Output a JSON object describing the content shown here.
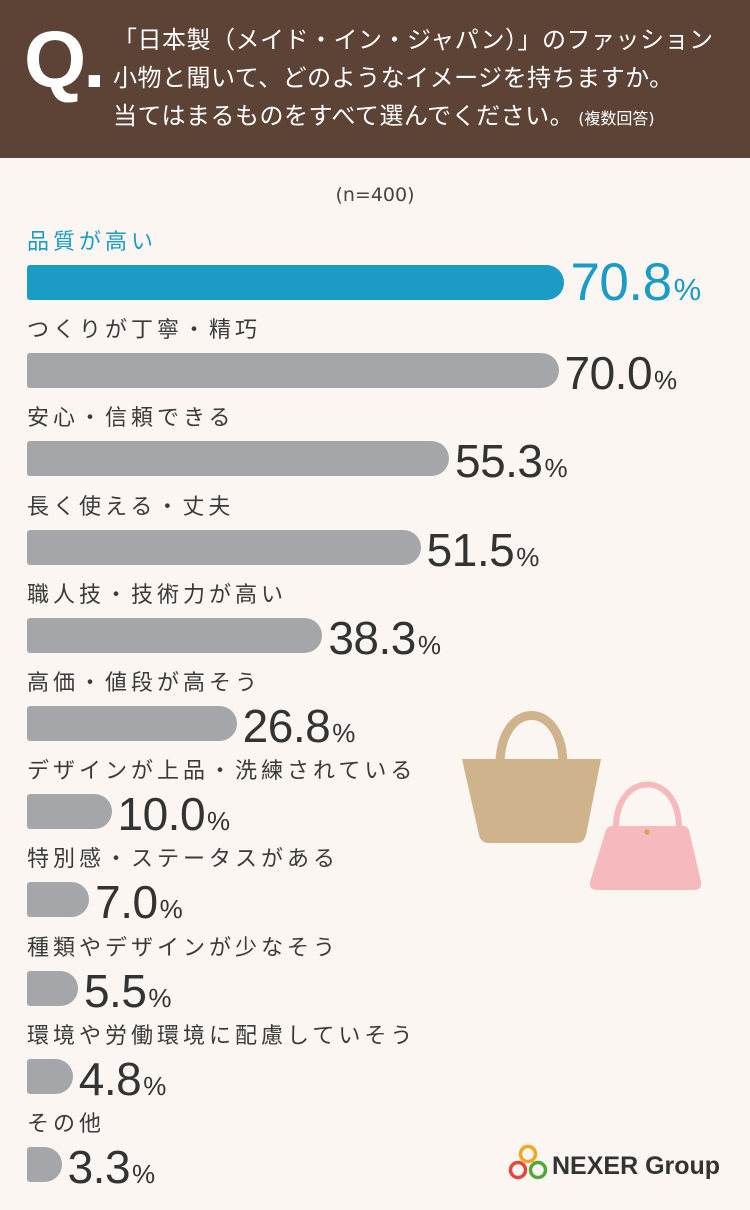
{
  "header": {
    "q_mark": "Q.",
    "question_lines": [
      "「日本製（メイド・イン・ジャパン）」のファッション",
      "小物と聞いて、どのようなイメージを持ちますか。",
      "当てはまるものをすべて選んでください。"
    ],
    "note": "(複数回答)"
  },
  "sample_size": "(n=400)",
  "chart_data": {
    "type": "bar",
    "orientation": "horizontal",
    "categories": [
      "品質が高い",
      "つくりが丁寧・精巧",
      "安心・信頼できる",
      "長く使える・丈夫",
      "職人技・技術力が高い",
      "高価・値段が高そう",
      "デザインが上品・洗練されている",
      "特別感・ステータスがある",
      "種類やデザインが少なそう",
      "環境や労働環境に配慮していそう",
      "その他"
    ],
    "values": [
      70.8,
      70.0,
      55.3,
      51.5,
      38.3,
      26.8,
      10.0,
      7.0,
      5.5,
      4.8,
      3.3
    ],
    "unit": "%",
    "highlight_index": 0
  },
  "icons": {
    "tote": "tote-bag-icon",
    "handbag": "handbag-icon",
    "logo": "nexer-rings-logo"
  },
  "logo": {
    "text": "NEXER Group"
  },
  "colors": {
    "header_background": "#5c4336",
    "page_background": "#fbf6f1",
    "highlight": "#1a9cc4",
    "bar": "#a5a6aa",
    "text": "#3a3a3a",
    "tote_bag": "#cfb38c",
    "handbag": "#f6b9be",
    "clasp": "#d8a44b",
    "logo_rings": [
      "#f4a623",
      "#e6453a",
      "#4fa83c"
    ]
  }
}
